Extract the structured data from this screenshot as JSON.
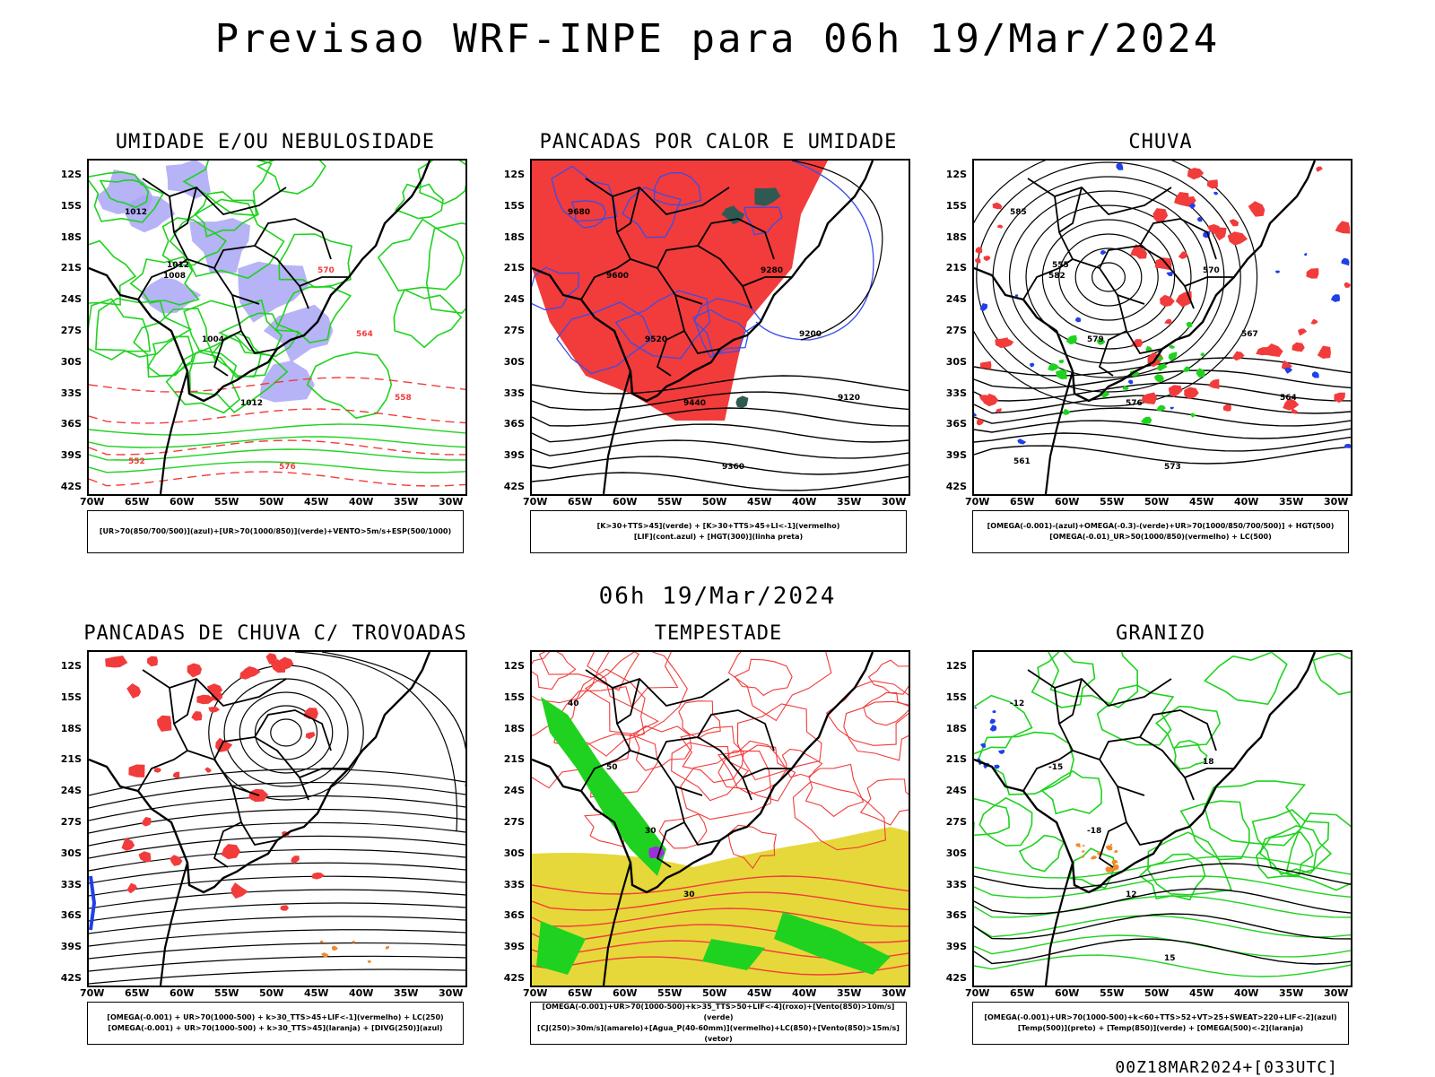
{
  "header": {
    "title": "Previsao WRF-INPE  para 06h 19/Mar/2024",
    "subtitle": "06h 19/Mar/2024",
    "footer": "00Z18MAR2024+[033UTC]"
  },
  "axes": {
    "lat_labels": [
      "12S",
      "15S",
      "18S",
      "21S",
      "24S",
      "27S",
      "30S",
      "33S",
      "36S",
      "39S",
      "42S"
    ],
    "lon_labels": [
      "70W",
      "65W",
      "60W",
      "55W",
      "50W",
      "45W",
      "40W",
      "35W",
      "30W"
    ]
  },
  "panels": [
    {
      "title": "UMIDADE E/OU NEBULOSIDADE",
      "legend": [
        "[UR>70(850/700/500)](azul)+[UR>70(1000/850)](verde)+VENTO>5m/s+ESP(500/1000)"
      ],
      "labels": [
        "1012",
        "1008",
        "1004",
        "1012",
        "576",
        "570",
        "564",
        "558",
        "552",
        "1012"
      ]
    },
    {
      "title": "PANCADAS POR CALOR E UMIDADE",
      "legend": [
        "[K>30+TTS>45](verde) + [K>30+TTS>45+LI<-1](vermelho)",
        "[LIF](cont.azul) + [HGT(300)](linha preta)"
      ],
      "labels": [
        "9680",
        "9600",
        "9520",
        "9440",
        "9360",
        "9280",
        "9200",
        "9120"
      ]
    },
    {
      "title": "CHUVA",
      "legend": [
        "[OMEGA(-0.001)-(azul)+OMEGA(-0.3)-(verde)+UR>70(1000/850/700/500)] + HGT(500)",
        "[OMEGA(-0.01)_UR>50(1000/850)(vermelho) + LC(500)"
      ],
      "labels": [
        "585",
        "582",
        "579",
        "576",
        "573",
        "570",
        "567",
        "564",
        "561",
        "555"
      ]
    },
    {
      "title": "PANCADAS DE CHUVA C/ TROVOADAS",
      "legend": [
        "[OMEGA(-0.001) + UR>70(1000-500) + k>30_TTS>45+LIF<-1](vermelho) + LC(250)",
        "[OMEGA(-0.001) + UR>70(1000-500) + k>30_TTS>45](laranja) + [DIVG(250)](azul)"
      ],
      "labels": []
    },
    {
      "title": "TEMPESTADE",
      "legend": [
        "[OMEGA(-0.001)+UR>70(1000-500)+k>35_TTS>50+LIF<-4](roxo)+[Vento(850)>10m/s](verde)",
        "[CJ(250)>30m/s](amarelo)+[Agua_P(40-60mm)](vermelho)+LC(850)+[Vento(850)>15m/s](vetor)"
      ],
      "labels": [
        "40",
        "50",
        "30",
        "30"
      ]
    },
    {
      "title": "GRANIZO",
      "legend": [
        "[OMEGA(-0.001)+UR>70(1000-500)+k<60+TTS>52+VT>25+SWEAT>220+LIF<-2](azul)",
        "[Temp(500)](preto) + [Temp(850)](verde) + [OMEGA(500)<-2](laranja)"
      ],
      "labels": [
        "-12",
        "-15",
        "-18",
        "12",
        "15",
        "18"
      ]
    }
  ],
  "colors": {
    "blue_humid": "#a9a6f5",
    "green": "#1fd21f",
    "red": "#f23b3b",
    "dark_teal": "#2f5a52",
    "yellow": "#e6d83a",
    "contour_blue": "#3a4ee8",
    "orange": "#f08a2a"
  }
}
